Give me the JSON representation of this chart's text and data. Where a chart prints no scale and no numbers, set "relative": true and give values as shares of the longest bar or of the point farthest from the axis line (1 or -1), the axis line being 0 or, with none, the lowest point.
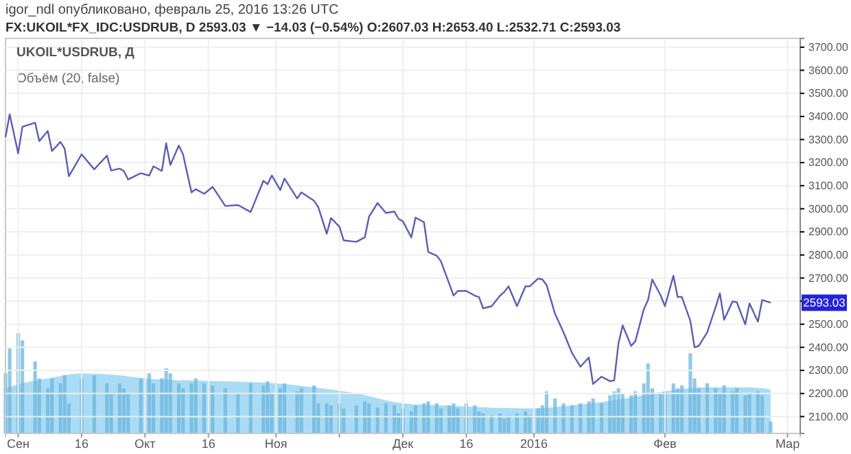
{
  "chart_data": [
    {
      "type": "line",
      "title": "igor_ndl опубликовано, февраль 25, 2016 13:26 UTC",
      "subtitle": "FX:UKOIL*FX_IDC:USDRUB, D 2593.03 ▼ −14.03 (−0.54%) O:2607.03 H:2653.40 L:2532.71 C:2593.03",
      "annotations": [
        "UKOIL*USDRUB, Д",
        {
          "text": "2593.03",
          "x": "2016-02-26",
          "y": 2593.03
        }
      ],
      "xlim": [
        "2015-08-29",
        "2016-03-04"
      ],
      "xticks": [
        {
          "value": "2015-09-01",
          "label": "Сен"
        },
        {
          "value": "2015-09-16",
          "label": "16"
        },
        {
          "value": "2015-10-01",
          "label": "Окт"
        },
        {
          "value": "2015-10-16",
          "label": "16"
        },
        {
          "value": "2015-11-01",
          "label": "Ноя"
        },
        {
          "value": "2015-11-16",
          "label": null
        },
        {
          "value": "2015-12-01",
          "label": "Дек"
        },
        {
          "value": "2015-12-16",
          "label": "16"
        },
        {
          "value": "2016-01-01",
          "label": "2016"
        },
        {
          "value": "2016-02-01",
          "label": "Фев"
        },
        {
          "value": "2016-03-01",
          "label": "Мар"
        }
      ],
      "ylim": [
        2027,
        3738
      ],
      "yticks": [
        {
          "value": 2100,
          "label": "2100.00"
        },
        {
          "value": 2200,
          "label": "2200.00"
        },
        {
          "value": 2300,
          "label": "2300.00"
        },
        {
          "value": 2400,
          "label": "2400.00"
        },
        {
          "value": 2500,
          "label": "2500.00"
        },
        {
          "value": 2600,
          "label": null
        },
        {
          "value": 2700,
          "label": "2700.00"
        },
        {
          "value": 2800,
          "label": "2800.00"
        },
        {
          "value": 2900,
          "label": "2900.00"
        },
        {
          "value": 3000,
          "label": "3000.00"
        },
        {
          "value": 3100,
          "label": "3100.00"
        },
        {
          "value": 3200,
          "label": "3200.00"
        },
        {
          "value": 3300,
          "label": "3300.00"
        },
        {
          "value": 3400,
          "label": "3400.00"
        },
        {
          "value": 3500,
          "label": "3500.00"
        },
        {
          "value": 3600,
          "label": "3600.00"
        },
        {
          "value": 3700,
          "label": "3700.00"
        }
      ],
      "grid": true,
      "series": [
        {
          "color": "#5a5eb0",
          "x": [
            "2015-08-29",
            "2015-08-30",
            "2015-09-01",
            "2015-09-02",
            "2015-09-05",
            "2015-09-06",
            "2015-09-08",
            "2015-09-09",
            "2015-09-11",
            "2015-09-12",
            "2015-09-13",
            "2015-09-16",
            "2015-09-19",
            "2015-09-22",
            "2015-09-23",
            "2015-09-25",
            "2015-09-26",
            "2015-09-27",
            "2015-09-30",
            "2015-10-02",
            "2015-10-03",
            "2015-10-05",
            "2015-10-06",
            "2015-10-07",
            "2015-10-09",
            "2015-10-10",
            "2015-10-12",
            "2015-10-13",
            "2015-10-15",
            "2015-10-17",
            "2015-10-20",
            "2015-10-23",
            "2015-10-26",
            "2015-10-29",
            "2015-10-30",
            "2015-10-31",
            "2015-11-02",
            "2015-11-03",
            "2015-11-06",
            "2015-11-07",
            "2015-11-10",
            "2015-11-11",
            "2015-11-13",
            "2015-11-14",
            "2015-11-16",
            "2015-11-17",
            "2015-11-20",
            "2015-11-22",
            "2015-11-23",
            "2015-11-25",
            "2015-11-27",
            "2015-11-29",
            "2015-11-30",
            "2015-12-01",
            "2015-12-03",
            "2015-12-04",
            "2015-12-06",
            "2015-12-07",
            "2015-12-09",
            "2015-12-10",
            "2015-12-12",
            "2015-12-13",
            "2015-12-14",
            "2015-12-16",
            "2015-12-18",
            "2015-12-19",
            "2015-12-20",
            "2015-12-22",
            "2015-12-24",
            "2015-12-25",
            "2015-12-26",
            "2015-12-28",
            "2015-12-30",
            "2015-12-31",
            "2016-01-02",
            "2016-01-03",
            "2016-01-04",
            "2016-01-06",
            "2016-01-08",
            "2016-01-10",
            "2016-01-12",
            "2016-01-14",
            "2016-01-15",
            "2016-01-17",
            "2016-01-19",
            "2016-01-20",
            "2016-01-21",
            "2016-01-22",
            "2016-01-24",
            "2016-01-25",
            "2016-01-27",
            "2016-01-28",
            "2016-01-29",
            "2016-01-31",
            "2016-02-01",
            "2016-02-03",
            "2016-02-04",
            "2016-02-05",
            "2016-02-07",
            "2016-02-08",
            "2016-02-09",
            "2016-02-11",
            "2016-02-13",
            "2016-02-14",
            "2016-02-15",
            "2016-02-17",
            "2016-02-18",
            "2016-02-20",
            "2016-02-21",
            "2016-02-23",
            "2016-02-24",
            "2016-02-26"
          ],
          "values": [
            3310,
            3409,
            3240,
            3355,
            3373,
            3293,
            3337,
            3250,
            3290,
            3260,
            3141,
            3236,
            3171,
            3230,
            3166,
            3174,
            3164,
            3127,
            3154,
            3144,
            3184,
            3164,
            3284,
            3190,
            3274,
            3236,
            3071,
            3085,
            3065,
            3095,
            3012,
            3016,
            2986,
            3121,
            3107,
            3144,
            3081,
            3131,
            3045,
            3071,
            3035,
            3007,
            2892,
            2960,
            2922,
            2863,
            2857,
            2876,
            2966,
            3025,
            2982,
            2988,
            2956,
            2946,
            2876,
            2962,
            2942,
            2813,
            2797,
            2773,
            2674,
            2624,
            2644,
            2644,
            2624,
            2618,
            2569,
            2578,
            2624,
            2640,
            2664,
            2578,
            2664,
            2664,
            2698,
            2694,
            2670,
            2545,
            2465,
            2376,
            2316,
            2356,
            2241,
            2273,
            2253,
            2257,
            2416,
            2495,
            2406,
            2426,
            2565,
            2605,
            2694,
            2624,
            2578,
            2710,
            2618,
            2618,
            2515,
            2400,
            2406,
            2465,
            2575,
            2634,
            2519,
            2599,
            2595,
            2499,
            2590,
            2511,
            2605,
            2593
          ]
        }
      ]
    },
    {
      "type": "bar",
      "title": "Объём (20, false)",
      "relative": true,
      "tick_labels": false,
      "xlim": [
        "2015-08-29",
        "2016-03-04"
      ],
      "series": [
        {
          "type": "area",
          "color": "#a9dcf4",
          "x": [
            "2015-08-29",
            "2015-09-01",
            "2015-09-08",
            "2015-09-16",
            "2015-09-25",
            "2015-10-01",
            "2015-10-10",
            "2015-10-20",
            "2015-11-01",
            "2015-11-10",
            "2015-11-20",
            "2015-12-01",
            "2015-12-10",
            "2015-12-20",
            "2016-01-01",
            "2016-01-10",
            "2016-01-20",
            "2016-02-01",
            "2016-02-10",
            "2016-02-20",
            "2016-02-26"
          ],
          "values": [
            0.45,
            0.49,
            0.55,
            0.6,
            0.58,
            0.55,
            0.53,
            0.52,
            0.5,
            0.46,
            0.4,
            0.3,
            0.28,
            0.26,
            0.25,
            0.28,
            0.33,
            0.42,
            0.46,
            0.46,
            0.44
          ]
        },
        {
          "color": "#6cb6de",
          "x": [
            "2015-08-29",
            "2015-08-30",
            "2015-09-01",
            "2015-09-02",
            "2015-09-05",
            "2015-09-06",
            "2015-09-08",
            "2015-09-09",
            "2015-09-11",
            "2015-09-12",
            "2015-09-13",
            "2015-09-16",
            "2015-09-19",
            "2015-09-22",
            "2015-09-23",
            "2015-09-25",
            "2015-09-26",
            "2015-09-27",
            "2015-09-30",
            "2015-10-02",
            "2015-10-03",
            "2015-10-05",
            "2015-10-06",
            "2015-10-07",
            "2015-10-09",
            "2015-10-10",
            "2015-10-12",
            "2015-10-13",
            "2015-10-15",
            "2015-10-17",
            "2015-10-20",
            "2015-10-23",
            "2015-10-26",
            "2015-10-29",
            "2015-10-30",
            "2015-10-31",
            "2015-11-02",
            "2015-11-03",
            "2015-11-06",
            "2015-11-07",
            "2015-11-10",
            "2015-11-11",
            "2015-11-13",
            "2015-11-14",
            "2015-11-16",
            "2015-11-17",
            "2015-11-20",
            "2015-11-22",
            "2015-11-23",
            "2015-11-25",
            "2015-11-27",
            "2015-11-29",
            "2015-11-30",
            "2015-12-01",
            "2015-12-03",
            "2015-12-04",
            "2015-12-06",
            "2015-12-07",
            "2015-12-09",
            "2015-12-10",
            "2015-12-12",
            "2015-12-13",
            "2015-12-14",
            "2015-12-16",
            "2015-12-18",
            "2015-12-19",
            "2015-12-20",
            "2015-12-22",
            "2015-12-24",
            "2015-12-25",
            "2015-12-26",
            "2015-12-28",
            "2015-12-30",
            "2015-12-31",
            "2016-01-02",
            "2016-01-03",
            "2016-01-04",
            "2016-01-06",
            "2016-01-08",
            "2016-01-10",
            "2016-01-12",
            "2016-01-14",
            "2016-01-15",
            "2016-01-17",
            "2016-01-19",
            "2016-01-20",
            "2016-01-21",
            "2016-01-22",
            "2016-01-24",
            "2016-01-25",
            "2016-01-27",
            "2016-01-28",
            "2016-01-29",
            "2016-01-31",
            "2016-02-01",
            "2016-02-03",
            "2016-02-04",
            "2016-02-05",
            "2016-02-07",
            "2016-02-08",
            "2016-02-09",
            "2016-02-11",
            "2016-02-13",
            "2016-02-14",
            "2016-02-15",
            "2016-02-17",
            "2016-02-18",
            "2016-02-20",
            "2016-02-21",
            "2016-02-23",
            "2016-02-24",
            "2016-02-26"
          ],
          "values": [
            0.6,
            0.85,
            1,
            0.93,
            0.72,
            0.55,
            0.45,
            0.55,
            0.5,
            0.58,
            0.3,
            0.55,
            0.58,
            0.5,
            0.4,
            0.5,
            0.45,
            0.4,
            0.55,
            0.6,
            0.5,
            0.55,
            0.65,
            0.6,
            0.5,
            0.45,
            0.5,
            0.55,
            0.5,
            0.48,
            0.45,
            0.4,
            0.5,
            0.48,
            0.52,
            0.4,
            0.45,
            0.5,
            0.42,
            0.45,
            0.48,
            0.3,
            0.3,
            0.28,
            0.3,
            0.25,
            0.28,
            0.32,
            0.3,
            0.26,
            0.3,
            0.28,
            0.2,
            0.25,
            0.22,
            0.28,
            0.3,
            0.32,
            0.3,
            0.25,
            0.28,
            0.3,
            0.25,
            0.3,
            0.28,
            0.22,
            0.2,
            0.18,
            0.2,
            0.15,
            0.18,
            0.2,
            0.22,
            0.18,
            0.25,
            0.28,
            0.42,
            0.35,
            0.3,
            0.28,
            0.3,
            0.32,
            0.35,
            0.3,
            0.38,
            0.42,
            0.45,
            0.4,
            0.38,
            0.42,
            0.5,
            0.7,
            0.45,
            0.4,
            0.42,
            0.5,
            0.45,
            0.48,
            0.8,
            0.55,
            0.45,
            0.5,
            0.45,
            0.4,
            0.48,
            0.42,
            0.45,
            0.38,
            0.4,
            0.42,
            0.38,
            0.12
          ]
        }
      ]
    }
  ]
}
